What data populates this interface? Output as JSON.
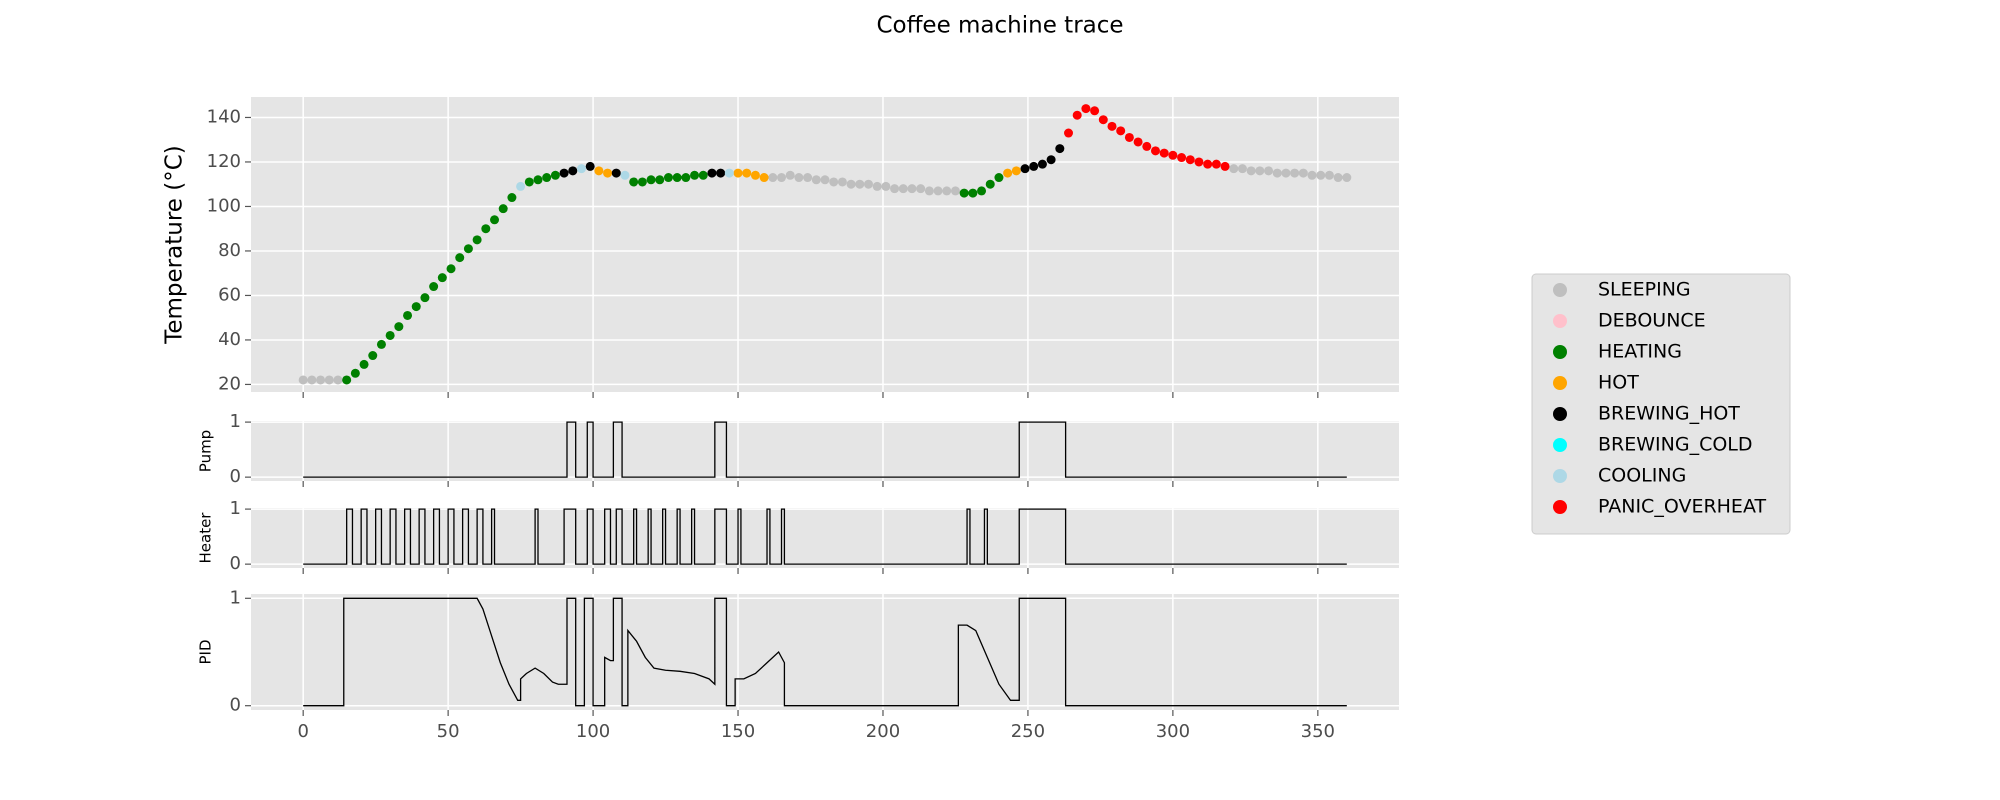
{
  "title": "Coffee machine trace",
  "chart_data": [
    {
      "type": "scatter",
      "ylabel": "Temperature (°C)",
      "xlim": [
        -18,
        378
      ],
      "ylim": [
        16.6,
        149.2
      ],
      "yticks": [
        20,
        40,
        60,
        80,
        100,
        120,
        140
      ],
      "grid": true,
      "legend": "right",
      "series": [
        {
          "name": "SLEEPING",
          "color": "#bfbfbf",
          "x": [
            0,
            3,
            6,
            9,
            12,
            162,
            165,
            168,
            171,
            174,
            177,
            180,
            183,
            186,
            189,
            192,
            195,
            198,
            201,
            204,
            207,
            210,
            213,
            216,
            219,
            222,
            225,
            321,
            324,
            327,
            330,
            333,
            336,
            339,
            342,
            345,
            348,
            351,
            354,
            357,
            360
          ],
          "values": [
            22,
            22,
            22,
            22,
            22,
            113,
            113,
            114,
            113,
            113,
            112,
            112,
            111,
            111,
            110,
            110,
            110,
            109,
            109,
            108,
            108,
            108,
            108,
            107,
            107,
            107,
            107,
            117,
            117,
            116,
            116,
            116,
            115,
            115,
            115,
            115,
            114,
            114,
            114,
            113,
            113
          ]
        },
        {
          "name": "DEBOUNCE",
          "color": "#ffc0cb",
          "x": [],
          "values": []
        },
        {
          "name": "HEATING",
          "color": "#008000",
          "x": [
            15,
            18,
            21,
            24,
            27,
            30,
            33,
            36,
            39,
            42,
            45,
            48,
            51,
            54,
            57,
            60,
            63,
            66,
            69,
            72,
            78,
            81,
            84,
            87,
            114,
            117,
            120,
            123,
            126,
            129,
            132,
            135,
            138,
            228,
            231,
            234,
            237,
            240
          ],
          "values": [
            22,
            25,
            29,
            33,
            38,
            42,
            46,
            51,
            55,
            59,
            64,
            68,
            72,
            77,
            81,
            85,
            90,
            94,
            99,
            104,
            111,
            112,
            113,
            114,
            111,
            111,
            112,
            112,
            113,
            113,
            113,
            114,
            114,
            106,
            106,
            107,
            110,
            113
          ]
        },
        {
          "name": "HOT",
          "color": "#ffa500",
          "x": [
            102,
            105,
            150,
            153,
            156,
            159,
            243,
            246
          ],
          "values": [
            116,
            115,
            115,
            115,
            114,
            113,
            115,
            116
          ]
        },
        {
          "name": "BREWING_HOT",
          "color": "#000000",
          "x": [
            90,
            93,
            99,
            108,
            141,
            144,
            249,
            252,
            255,
            258,
            261
          ],
          "values": [
            115,
            116,
            118,
            115,
            115,
            115,
            117,
            118,
            119,
            121,
            126
          ]
        },
        {
          "name": "BREWING_COLD",
          "color": "#00ffff",
          "x": [],
          "values": []
        },
        {
          "name": "COOLING",
          "color": "#add8e6",
          "x": [
            75,
            96,
            111,
            147
          ],
          "values": [
            109,
            117,
            114,
            115
          ]
        },
        {
          "name": "PANIC_OVERHEAT",
          "color": "#ff0000",
          "x": [
            264,
            267,
            270,
            273,
            276,
            279,
            282,
            285,
            288,
            291,
            294,
            297,
            300,
            303,
            306,
            309,
            312,
            315,
            318
          ],
          "values": [
            133,
            141,
            144,
            143,
            139,
            136,
            134,
            131,
            129,
            127,
            125,
            124,
            123,
            122,
            121,
            120,
            119,
            119,
            118
          ]
        }
      ]
    },
    {
      "type": "line",
      "drawstyle": "steps-post",
      "ylabel": "Pump",
      "color": "#000000",
      "xlim": [
        -18,
        378
      ],
      "ylim": [
        -0.07,
        1.02
      ],
      "yticks": [
        0,
        1
      ],
      "grid": true,
      "x": [
        0,
        91,
        94,
        98,
        100,
        107,
        110,
        142,
        146,
        247,
        263,
        360
      ],
      "values": [
        0,
        1,
        0,
        1,
        0,
        1,
        0,
        1,
        0,
        1,
        0,
        0
      ]
    },
    {
      "type": "line",
      "drawstyle": "steps-post",
      "ylabel": "Heater",
      "color": "#000000",
      "xlim": [
        -18,
        378
      ],
      "ylim": [
        -0.07,
        1.02
      ],
      "yticks": [
        0,
        1
      ],
      "grid": true,
      "x": [
        0,
        15,
        17,
        20,
        22,
        25,
        27,
        30,
        32,
        35,
        37,
        40,
        42,
        45,
        47,
        50,
        52,
        55,
        57,
        60,
        62,
        65,
        66,
        80,
        81,
        90,
        94,
        98,
        100,
        104,
        106,
        108,
        110,
        114,
        115,
        119,
        120,
        124,
        125,
        129,
        130,
        134,
        135,
        142,
        146,
        150,
        151,
        160,
        161,
        165,
        166,
        229,
        230,
        235,
        236,
        247,
        263,
        360
      ],
      "values": [
        0,
        1,
        0,
        1,
        0,
        1,
        0,
        1,
        0,
        1,
        0,
        1,
        0,
        1,
        0,
        1,
        0,
        1,
        0,
        1,
        0,
        1,
        0,
        1,
        0,
        1,
        0,
        1,
        0,
        1,
        0,
        1,
        0,
        1,
        0,
        1,
        0,
        1,
        0,
        1,
        0,
        1,
        0,
        1,
        0,
        1,
        0,
        1,
        0,
        1,
        0,
        1,
        0,
        1,
        0,
        1,
        0,
        0
      ]
    },
    {
      "type": "line",
      "ylabel": "PID",
      "color": "#000000",
      "xlim": [
        -18,
        378
      ],
      "ylim": [
        -0.04,
        1.04
      ],
      "yticks": [
        0,
        1
      ],
      "xticks": [
        0,
        50,
        100,
        150,
        200,
        250,
        300,
        350
      ],
      "grid": true,
      "x": [
        0,
        14,
        14,
        60,
        62,
        65,
        68,
        71,
        73,
        74,
        75,
        75,
        77,
        80,
        83,
        86,
        88,
        90,
        91,
        91,
        94,
        94,
        97,
        97,
        100,
        100,
        104,
        104,
        106,
        107,
        107,
        110,
        110,
        112,
        112,
        115,
        118,
        121,
        125,
        130,
        135,
        140,
        142,
        142,
        146,
        146,
        149,
        149,
        152,
        156,
        160,
        164,
        166,
        166,
        226,
        226,
        229,
        232,
        236,
        240,
        244,
        246,
        247,
        247,
        263,
        263,
        360
      ],
      "values": [
        0,
        0,
        1,
        1,
        0.9,
        0.65,
        0.4,
        0.2,
        0.1,
        0.05,
        0.05,
        0.25,
        0.3,
        0.35,
        0.3,
        0.22,
        0.2,
        0.2,
        0.2,
        1,
        1,
        0,
        0,
        1,
        1,
        0,
        0,
        0.45,
        0.42,
        0.42,
        1,
        1,
        0,
        0,
        0.7,
        0.6,
        0.45,
        0.35,
        0.33,
        0.32,
        0.3,
        0.25,
        0.2,
        1,
        1,
        0,
        0,
        0.25,
        0.25,
        0.3,
        0.4,
        0.5,
        0.4,
        0,
        0,
        0.75,
        0.75,
        0.7,
        0.45,
        0.2,
        0.05,
        0.05,
        0.05,
        1,
        1,
        0,
        0
      ]
    }
  ]
}
